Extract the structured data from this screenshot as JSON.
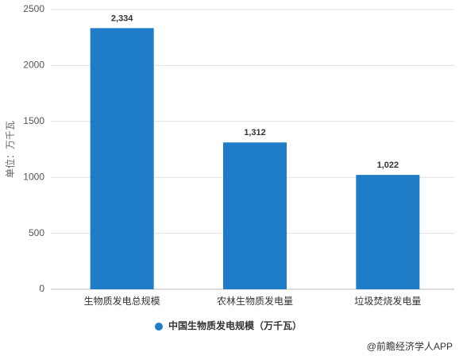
{
  "chart_data": {
    "type": "bar",
    "y_label": "单位：万千瓦",
    "categories": [
      "生物质发电总规模",
      "农林生物质发电量",
      "垃圾焚烧发电量"
    ],
    "series": [
      {
        "name": "中国生物质发电规模（万千瓦）",
        "color": "#1f7dc8",
        "values": [
          2334,
          1312,
          1022
        ],
        "value_labels": [
          "2,334",
          "1,312",
          "1,022"
        ]
      }
    ],
    "ylim": [
      0,
      2500
    ],
    "yticks": [
      0,
      500,
      1000,
      1500,
      2000,
      2500
    ],
    "grid": true,
    "legend": "bottom",
    "watermark": "@前瞻经济学人APP"
  }
}
